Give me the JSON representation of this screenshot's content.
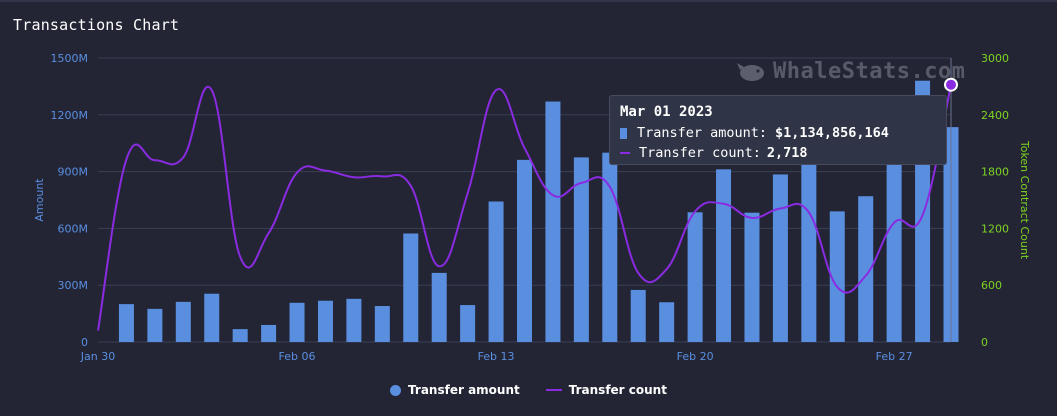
{
  "title": "Transactions Chart",
  "watermark": "WhaleStats.com",
  "chart_data": {
    "type": "bar",
    "x": [
      "Jan 30",
      "Jan 31",
      "Feb 01",
      "Feb 02",
      "Feb 03",
      "Feb 04",
      "Feb 05",
      "Feb 06",
      "Feb 07",
      "Feb 08",
      "Feb 09",
      "Feb 10",
      "Feb 11",
      "Feb 12",
      "Feb 13",
      "Feb 14",
      "Feb 15",
      "Feb 16",
      "Feb 17",
      "Feb 18",
      "Feb 19",
      "Feb 20",
      "Feb 21",
      "Feb 22",
      "Feb 23",
      "Feb 24",
      "Feb 25",
      "Feb 26",
      "Feb 27",
      "Feb 28",
      "Mar 01"
    ],
    "x_tick_labels": [
      "Jan 30",
      "Feb 06",
      "Feb 13",
      "Feb 20",
      "Feb 27"
    ],
    "series": [
      {
        "name": "Transfer amount",
        "axis": "left",
        "type": "bar",
        "color": "#5a8fe0",
        "values": [
          null,
          200000000,
          175000000,
          212000000,
          255000000,
          68000000,
          90000000,
          207000000,
          218000000,
          228000000,
          190000000,
          573000000,
          365000000,
          195000000,
          742000000,
          962000000,
          1270000000,
          975000000,
          1000000000,
          275000000,
          210000000,
          685000000,
          912000000,
          683000000,
          885000000,
          995000000,
          690000000,
          770000000,
          1100000000,
          1380000000,
          1134856164
        ]
      },
      {
        "name": "Transfer count",
        "axis": "right",
        "type": "line",
        "color": "#8a2be2",
        "values": [
          120,
          1930,
          1920,
          1950,
          2660,
          900,
          1150,
          1790,
          1810,
          1740,
          1750,
          1650,
          800,
          1570,
          2660,
          2050,
          1550,
          1680,
          1640,
          730,
          770,
          1380,
          1460,
          1310,
          1410,
          1370,
          580,
          700,
          1260,
          1340,
          2718
        ]
      }
    ],
    "yleft": {
      "label": "Amount",
      "min": 0,
      "max": 1500000000,
      "ticks": [
        "0",
        "300M",
        "600M",
        "900M",
        "1200M",
        "1500M"
      ]
    },
    "yright": {
      "label": "Token Contract Count",
      "min": 0,
      "max": 3000,
      "ticks": [
        "0",
        "600",
        "1200",
        "1800",
        "2400",
        "3000"
      ]
    },
    "grid": true,
    "legend_position": "bottom-center",
    "tooltip": {
      "date": "Mar 01 2023",
      "amount_label": "Transfer amount:",
      "amount_value": "$1,134,856,164",
      "count_label": "Transfer count:",
      "count_value": "2,718"
    }
  }
}
